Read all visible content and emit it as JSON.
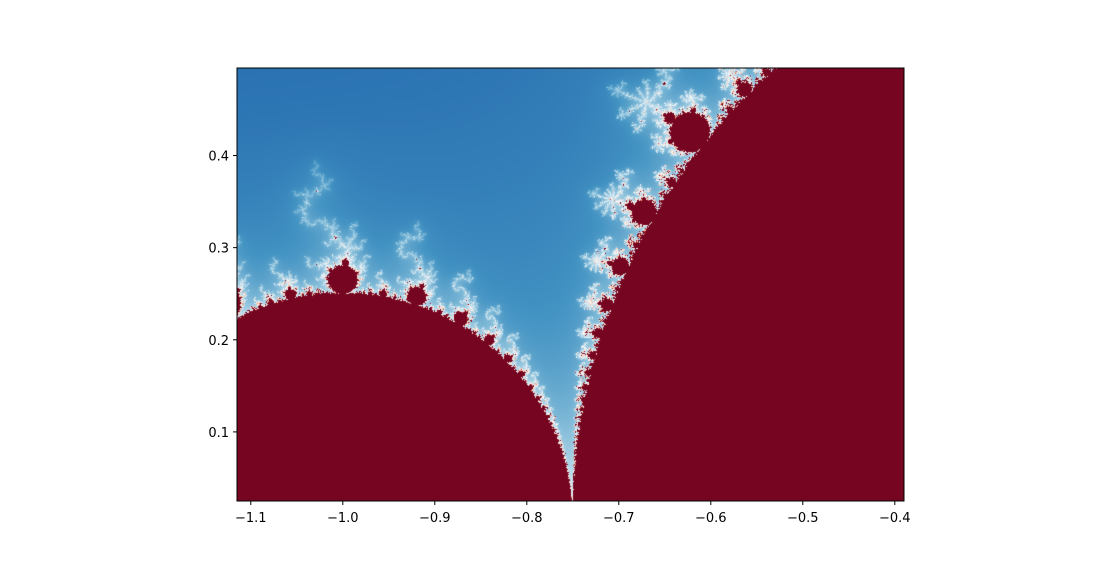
{
  "chart_data": {
    "type": "heatmap",
    "title": "",
    "xlabel": "",
    "ylabel": "",
    "xlim": [
      -1.115,
      -0.39
    ],
    "ylim": [
      0.025,
      0.495
    ],
    "x_ticks": [
      {
        "value": -1.1,
        "label": "−1.1"
      },
      {
        "value": -1.0,
        "label": "−1.0"
      },
      {
        "value": -0.9,
        "label": "−0.9"
      },
      {
        "value": -0.8,
        "label": "−0.8"
      },
      {
        "value": -0.7,
        "label": "−0.7"
      },
      {
        "value": -0.6,
        "label": "−0.6"
      },
      {
        "value": -0.5,
        "label": "−0.5"
      },
      {
        "value": -0.4,
        "label": "−0.4"
      }
    ],
    "y_ticks": [
      {
        "value": 0.1,
        "label": "0.1"
      },
      {
        "value": 0.2,
        "label": "0.2"
      },
      {
        "value": 0.3,
        "label": "0.3"
      },
      {
        "value": 0.4,
        "label": "0.4"
      }
    ],
    "colormap": "RdBu",
    "colors": {
      "outside_escape_fast": "#08306b",
      "boundary_light": "#f7f7f7",
      "inside_deep": "#67001f",
      "inside_mid": "#b2182b"
    },
    "content": "Mandelbrot set escape-time fractal, seahorse valley region",
    "grid": false,
    "legend": "none"
  }
}
